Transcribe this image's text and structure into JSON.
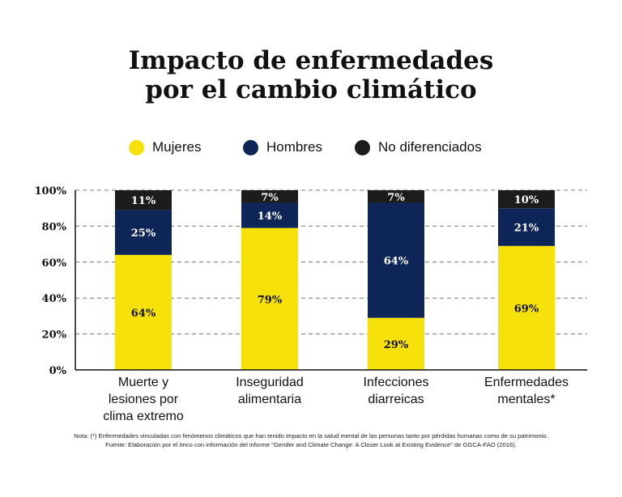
{
  "title_lines": [
    "Impacto de enfermedades",
    "por el cambio climático"
  ],
  "colors": {
    "mujeres": "#f6e10a",
    "hombres": "#0e2557",
    "no_diferenciados": "#1c1c1c"
  },
  "legend": [
    {
      "label": "Mujeres",
      "color": "#f6e10a"
    },
    {
      "label": "Hombres",
      "color": "#0e2557"
    },
    {
      "label": "No diferenciados",
      "color": "#1c1c1c"
    }
  ],
  "chart_data": {
    "type": "bar",
    "stacked": true,
    "title": "Impacto de enfermedades por el cambio climático",
    "categories": [
      [
        "Muerte y",
        "lesiones por",
        "clima extremo"
      ],
      [
        "Inseguridad",
        "alimentaria"
      ],
      [
        "Infecciones",
        "diarreicas"
      ],
      [
        "Enfermedades",
        "mentales*"
      ]
    ],
    "series": [
      {
        "name": "Mujeres",
        "values": [
          64,
          79,
          29,
          69
        ],
        "labels": [
          "64%",
          "79%",
          "29%",
          "69%"
        ]
      },
      {
        "name": "Hombres",
        "values": [
          25,
          14,
          64,
          21
        ],
        "labels": [
          "25%",
          "14%",
          "64%",
          "21%"
        ]
      },
      {
        "name": "No diferenciados",
        "values": [
          11,
          7,
          7,
          10
        ],
        "labels": [
          "11%",
          "7%",
          "7%",
          "10%"
        ]
      }
    ],
    "y_ticks": [
      0,
      20,
      40,
      60,
      80,
      100
    ],
    "y_tick_labels": [
      "0%",
      "20%",
      "40%",
      "60%",
      "80%",
      "100%"
    ],
    "ylim": [
      0,
      100
    ],
    "grid": "dashed",
    "legend_position": "top"
  },
  "notes": [
    "Nota: (*) Enfermedades vinculadas con fenómenos climáticos que han tenido impacto en la salud mental de las personas tanto por pérdidas humanas como de su patrimonio.",
    "Fuente: Elaboración por el Imco con información del informe \"Gender and Climate Change: A Closer Look at Existing Evidence\" de GGCA-FAO (2016)."
  ]
}
